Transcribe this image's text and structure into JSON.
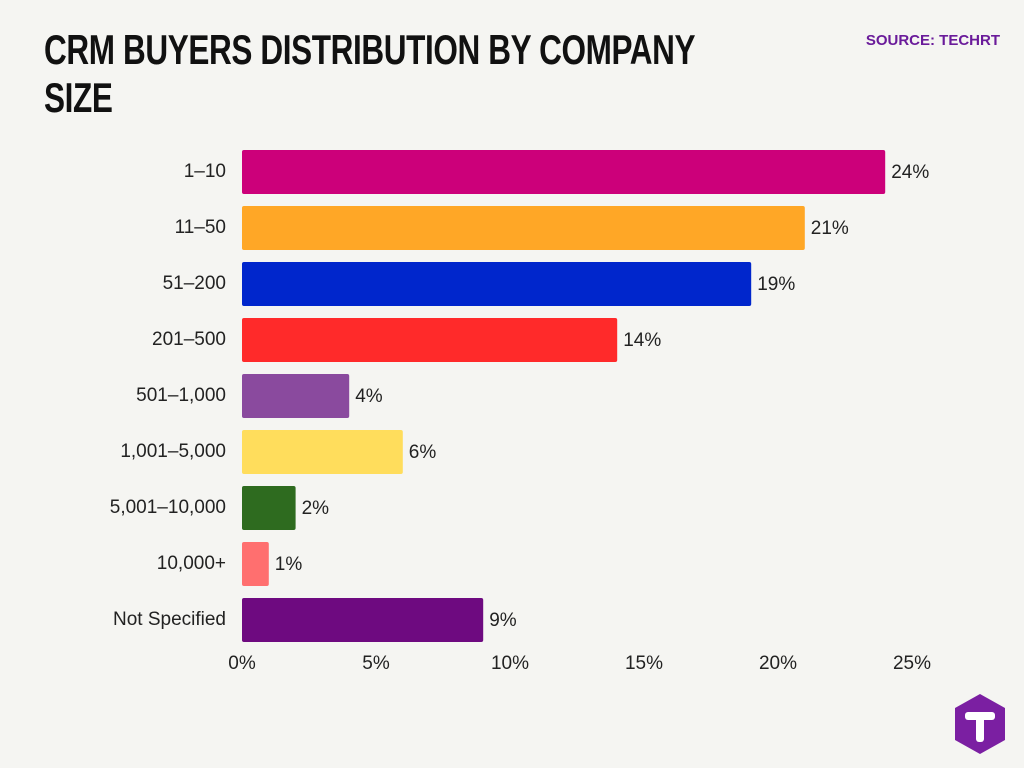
{
  "chart_data": {
    "type": "bar",
    "orientation": "horizontal",
    "title": "CRM BUYERS DISTRIBUTION BY COMPANY SIZE",
    "source": "SOURCE: TECHRT",
    "categories": [
      "1–10",
      "11–50",
      "51–200",
      "201–500",
      "501–1,000",
      "1,001–5,000",
      "5,001–10,000",
      "10,000+",
      "Not Specified"
    ],
    "values": [
      24,
      21,
      19,
      14,
      4,
      6,
      2,
      1,
      9
    ],
    "value_labels": [
      "24%",
      "21%",
      "19%",
      "14%",
      "4%",
      "6%",
      "2%",
      "1%",
      "9%"
    ],
    "colors": [
      "#cc007a",
      "#ffa726",
      "#0026cc",
      "#ff2a2a",
      "#8a4a9e",
      "#ffdd5c",
      "#2e6b1f",
      "#ff6f6f",
      "#6e0a80"
    ],
    "xlim": [
      0,
      25
    ],
    "xticks": [
      {
        "value": 0,
        "label": "0%"
      },
      {
        "value": 5,
        "label": "5%"
      },
      {
        "value": 10,
        "label": "10%"
      },
      {
        "value": 15,
        "label": "15%"
      },
      {
        "value": 20,
        "label": "20%"
      },
      {
        "value": 25,
        "label": "25%"
      }
    ],
    "grid": false
  }
}
